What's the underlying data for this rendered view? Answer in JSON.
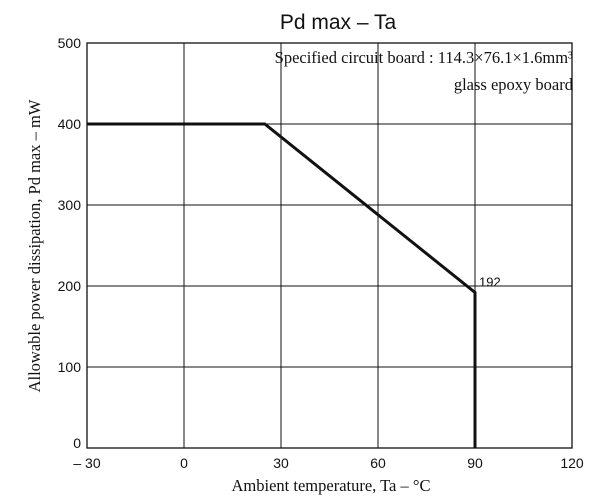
{
  "chart_data": {
    "type": "line",
    "title": "Pd max  –  Ta",
    "xlabel": "Ambient temperature, Ta  –  °C",
    "ylabel": "Allowable power dissipation, Pd max  –  mW",
    "annotation_lines": [
      "Specified circuit board : 114.3×76.1×1.6mm³",
      "glass epoxy board"
    ],
    "data_labels": [
      {
        "x": 90,
        "y": 192,
        "text": "192"
      }
    ],
    "xlim": [
      -30,
      120
    ],
    "ylim": [
      0,
      500
    ],
    "x_ticks": [
      -30,
      0,
      30,
      60,
      90,
      120
    ],
    "x_tick_labels": [
      "– 30",
      "0",
      "30",
      "60",
      "90",
      "120"
    ],
    "y_ticks": [
      0,
      100,
      200,
      300,
      400,
      500
    ],
    "y_tick_labels": [
      "0",
      "100",
      "200",
      "300",
      "400",
      "500"
    ],
    "grid": true,
    "series": [
      {
        "x": [
          -30,
          25,
          90,
          90
        ],
        "y": [
          400,
          400,
          192,
          0
        ]
      }
    ]
  }
}
